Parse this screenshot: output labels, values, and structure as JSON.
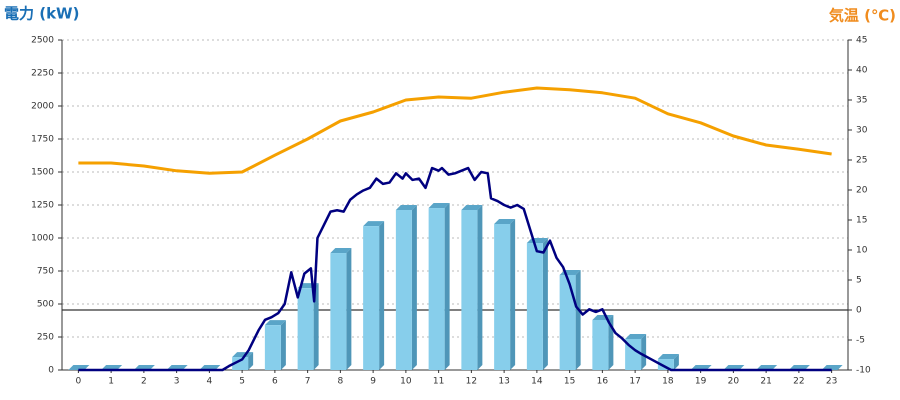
{
  "chart_data": {
    "type": "bar",
    "ylabel": "電力 (kW)",
    "y2label": "気温 (℃)",
    "categories": [
      "0",
      "1",
      "2",
      "3",
      "4",
      "5",
      "6",
      "7",
      "8",
      "9",
      "10",
      "11",
      "12",
      "13",
      "14",
      "15",
      "16",
      "17",
      "18",
      "19",
      "20",
      "21",
      "22",
      "23"
    ],
    "ylim": [
      0,
      2500
    ],
    "yticks": [
      0,
      250,
      500,
      750,
      1000,
      1250,
      1500,
      1750,
      2000,
      2250,
      2500
    ],
    "y2lim": [
      -10,
      45
    ],
    "y2ticks": [
      -10,
      -5,
      0,
      5,
      10,
      15,
      20,
      25,
      30,
      35,
      40,
      45
    ],
    "grid": true,
    "y2_zero_line": true,
    "series": [
      {
        "type": "bar",
        "color": "#87ceeb",
        "values": [
          0,
          0,
          0,
          0,
          0,
          98,
          340,
          620,
          886,
          1090,
          1212,
          1227,
          1212,
          1106,
          962,
          720,
          379,
          235,
          83,
          0,
          0,
          0,
          0,
          0
        ]
      },
      {
        "type": "line",
        "color": "#000080",
        "x": [
          0,
          4.4,
          4.6,
          5.0,
          5.2,
          5.5,
          5.7,
          5.9,
          6.1,
          6.3,
          6.5,
          6.7,
          6.9,
          7.1,
          7.2,
          7.3,
          7.5,
          7.7,
          7.9,
          8.1,
          8.3,
          8.5,
          8.7,
          8.9,
          9.1,
          9.3,
          9.5,
          9.7,
          9.9,
          10.0,
          10.2,
          10.4,
          10.6,
          10.8,
          11.0,
          11.1,
          11.3,
          11.5,
          11.7,
          11.9,
          12.1,
          12.3,
          12.5,
          12.6,
          12.8,
          13.0,
          13.2,
          13.4,
          13.6,
          13.8,
          14.0,
          14.2,
          14.4,
          14.6,
          14.8,
          15.0,
          15.2,
          15.4,
          15.6,
          15.8,
          16.0,
          16.2,
          16.4,
          16.6,
          16.8,
          17.0,
          17.2,
          17.5,
          17.8,
          18.1,
          23
        ],
        "values": [
          0,
          0,
          30,
          80,
          150,
          300,
          380,
          400,
          430,
          500,
          740,
          550,
          730,
          770,
          520,
          1000,
          1100,
          1200,
          1210,
          1200,
          1290,
          1330,
          1360,
          1380,
          1450,
          1410,
          1420,
          1490,
          1450,
          1490,
          1440,
          1450,
          1380,
          1530,
          1510,
          1530,
          1480,
          1490,
          1510,
          1530,
          1440,
          1500,
          1490,
          1300,
          1280,
          1250,
          1230,
          1250,
          1220,
          1060,
          900,
          890,
          980,
          850,
          780,
          650,
          480,
          420,
          460,
          440,
          460,
          360,
          280,
          240,
          190,
          150,
          120,
          80,
          40,
          0,
          0
        ]
      },
      {
        "type": "line",
        "axis": "y2",
        "color": "#f5a000",
        "values": [
          24.5,
          24.5,
          24,
          23.2,
          22.8,
          23,
          25.8,
          28.5,
          31.5,
          33,
          35,
          35.5,
          35.3,
          36.3,
          37,
          36.7,
          36.2,
          35.3,
          32.7,
          31.2,
          29,
          27.5,
          26.8,
          26
        ]
      }
    ]
  }
}
